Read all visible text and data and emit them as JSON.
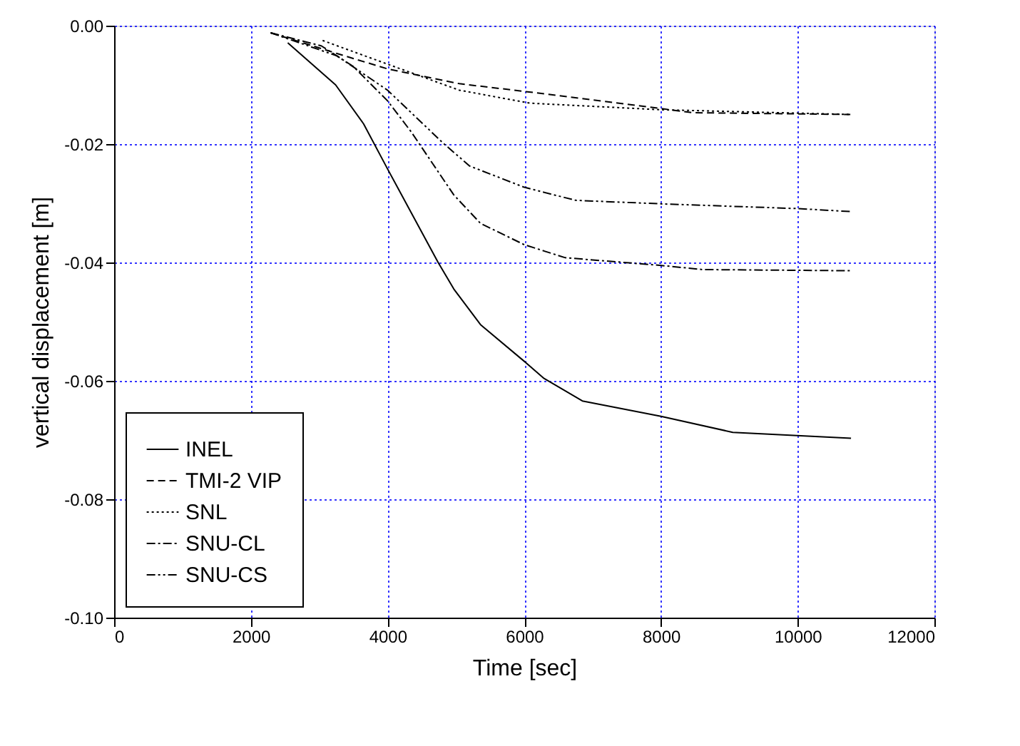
{
  "chart_data": {
    "type": "line",
    "xlabel": "Time [sec]",
    "ylabel": "vertical displacement [m]",
    "xlim": [
      0,
      12000
    ],
    "xticks": [
      0,
      2000,
      4000,
      6000,
      8000,
      10000,
      12000
    ],
    "ylim": [
      -0.1,
      0
    ],
    "yticks": [
      {
        "value": 0,
        "label": "0.00"
      },
      {
        "value": -0.02,
        "label": "-0.02"
      },
      {
        "value": -0.04,
        "label": "-0.04"
      },
      {
        "value": -0.06,
        "label": "-0.06"
      },
      {
        "value": -0.08,
        "label": "-0.08"
      },
      {
        "value": -0.1,
        "label": "-0.10"
      }
    ],
    "grid": true,
    "legend": "bottom left",
    "marker": "none",
    "series": [
      {
        "name": "INEL",
        "color": "#000000",
        "line_style": "solid",
        "x": [
          2540,
          3240,
          3650,
          4000,
          4740,
          4970,
          5360,
          6000,
          6290,
          6850,
          8000,
          9050,
          10780
        ],
        "values": [
          -0.0029,
          -0.01,
          -0.0166,
          -0.0242,
          -0.04,
          -0.0445,
          -0.0505,
          -0.0567,
          -0.0596,
          -0.0634,
          -0.066,
          -0.0687,
          -0.0697
        ]
      },
      {
        "name": "TMI-2 VIP",
        "color": "#000000",
        "line_style": "dashed",
        "x": [
          2290,
          3260,
          4000,
          5050,
          6000,
          6980,
          8000,
          8460,
          10770
        ],
        "values": [
          -0.0012,
          -0.0047,
          -0.0073,
          -0.0098,
          -0.0111,
          -0.0125,
          -0.014,
          -0.0147,
          -0.015
        ]
      },
      {
        "name": "SNL",
        "color": "#000000",
        "line_style": "dotted",
        "x": [
          3050,
          4000,
          5050,
          6090,
          8000,
          10770
        ],
        "values": [
          -0.0025,
          -0.0065,
          -0.0109,
          -0.0131,
          -0.0142,
          -0.015
        ]
      },
      {
        "name": "SNU-CL",
        "color": "#000000",
        "line_style": "dashdot",
        "x": [
          2290,
          3030,
          3500,
          4000,
          4350,
          4970,
          5360,
          6000,
          6600,
          8000,
          8610,
          10780
        ],
        "values": [
          -0.0012,
          -0.0034,
          -0.0069,
          -0.0127,
          -0.018,
          -0.0286,
          -0.0334,
          -0.037,
          -0.0392,
          -0.0405,
          -0.0412,
          -0.0414
        ]
      },
      {
        "name": "SNU-CS",
        "color": "#000000",
        "line_style": "dashdotdot",
        "x": [
          2290,
          3260,
          4000,
          4810,
          5200,
          6000,
          6750,
          8000,
          10000,
          10770
        ],
        "values": [
          -0.0012,
          -0.0051,
          -0.0109,
          -0.0198,
          -0.0237,
          -0.0273,
          -0.0295,
          -0.0301,
          -0.0309,
          -0.0314
        ]
      }
    ]
  }
}
